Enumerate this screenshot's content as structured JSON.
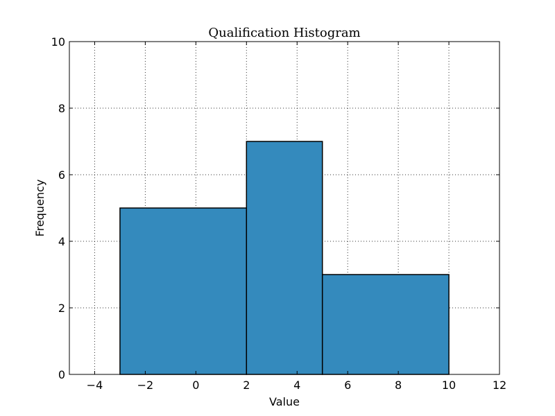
{
  "chart_data": {
    "type": "bar",
    "title": "Qualification Histogram",
    "xlabel": "Value",
    "ylabel": "Frequency",
    "xlim": [
      -5,
      12
    ],
    "ylim": [
      0,
      10
    ],
    "xticks": [
      -4,
      -2,
      0,
      2,
      4,
      6,
      8,
      10,
      12
    ],
    "xtick_labels": [
      "−4",
      "−2",
      "0",
      "2",
      "4",
      "6",
      "8",
      "10",
      "12"
    ],
    "yticks": [
      0,
      2,
      4,
      6,
      8,
      10
    ],
    "ytick_labels": [
      "0",
      "2",
      "4",
      "6",
      "8",
      "10"
    ],
    "bins": [
      {
        "start": -3,
        "end": 2,
        "count": 5
      },
      {
        "start": 2,
        "end": 5,
        "count": 7
      },
      {
        "start": 5,
        "end": 10,
        "count": 3
      }
    ],
    "bar_color": "#348ABD",
    "grid": true,
    "legend": "none"
  }
}
